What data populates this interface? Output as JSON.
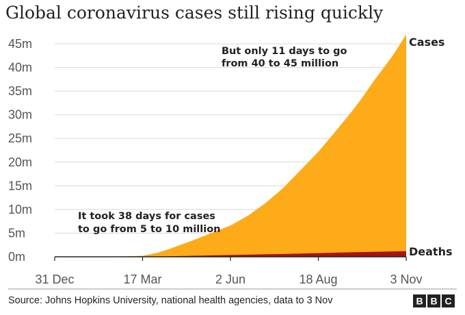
{
  "chart_data": {
    "type": "area",
    "title": "Global coronavirus cases still rising quickly",
    "xlabel": "",
    "ylabel": "",
    "x_start_date": "2019-12-31",
    "x_end_date": "2020-11-03",
    "x_ticks": [
      {
        "label": "31 Dec",
        "day": 0
      },
      {
        "label": "17 Mar",
        "day": 77
      },
      {
        "label": "2 Jun",
        "day": 154
      },
      {
        "label": "18 Aug",
        "day": 231
      },
      {
        "label": "3 Nov",
        "day": 308
      }
    ],
    "y_ticks": [
      {
        "label": "0m",
        "value": 0
      },
      {
        "label": "5m",
        "value": 5
      },
      {
        "label": "10m",
        "value": 10
      },
      {
        "label": "15m",
        "value": 15
      },
      {
        "label": "20m",
        "value": 20
      },
      {
        "label": "25m",
        "value": 25
      },
      {
        "label": "30m",
        "value": 30
      },
      {
        "label": "35m",
        "value": 35
      },
      {
        "label": "40m",
        "value": 40
      },
      {
        "label": "45m",
        "value": 45
      }
    ],
    "ylim": [
      0,
      47
    ],
    "xlim": [
      0,
      308
    ],
    "series": [
      {
        "name": "Cases",
        "color": "#fdab19",
        "x": [
          0,
          40,
          60,
          77,
          90,
          100,
          118,
          130,
          140,
          154,
          170,
          185,
          200,
          215,
          231,
          245,
          260,
          270,
          280,
          290,
          297,
          308
        ],
        "values": [
          0,
          0.04,
          0.09,
          0.2,
          0.85,
          1.6,
          3.2,
          4.3,
          5.3,
          6.6,
          8.8,
          11.4,
          14.5,
          18.2,
          22.2,
          26.2,
          30.6,
          33.8,
          37.3,
          40.5,
          42.8,
          47.0
        ]
      },
      {
        "name": "Deaths",
        "color": "#a5150a",
        "x": [
          0,
          77,
          100,
          118,
          154,
          200,
          231,
          260,
          280,
          308
        ],
        "values": [
          0,
          0.01,
          0.1,
          0.2,
          0.38,
          0.6,
          0.78,
          0.95,
          1.05,
          1.2
        ]
      }
    ],
    "annotations": [
      {
        "lines": [
          "But only 11 days to go",
          "from 40 to 45 million"
        ],
        "placement": "upper-middle"
      },
      {
        "lines": [
          "It took 38 days for cases",
          "to go from 5 to 10 million"
        ],
        "placement": "lower-left"
      }
    ],
    "source": "Source: Johns Hopkins University, national health agencies, data to 3 Nov",
    "logo_letters": [
      "B",
      "B",
      "C"
    ],
    "grid": true,
    "colors": {
      "grid": "#d8d8d8",
      "axis": "#222222",
      "text": "#222222",
      "tick_text": "#555555",
      "logo_bg": "#222222",
      "logo_fg": "#ffffff"
    }
  }
}
